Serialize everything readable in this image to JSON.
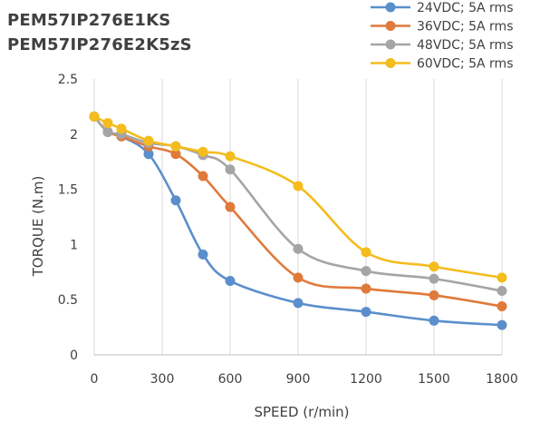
{
  "chart_data": {
    "type": "line",
    "title_lines": [
      "PEM57IP276E1KS",
      "PEM57IP276E2K5zS"
    ],
    "xlabel": "SPEED (r/min)",
    "ylabel": "TORQUE (N.m)",
    "xlim": [
      0,
      1800
    ],
    "ylim": [
      0,
      2.5
    ],
    "x_ticks": [
      "0",
      "300",
      "600",
      "900",
      "1200",
      "1500",
      "1800"
    ],
    "x_tick_values": [
      0,
      300,
      600,
      900,
      1200,
      1500,
      1800
    ],
    "y_ticks": [
      "0",
      "0.5",
      "1",
      "1.5",
      "2",
      "2.5"
    ],
    "y_tick_values": [
      0,
      0.5,
      1,
      1.5,
      2,
      2.5
    ],
    "grid": "vertical",
    "legend_position": "top-right",
    "series": [
      {
        "name": "24VDC; 5A rms",
        "color": "#5B8FCC",
        "points": [
          [
            0,
            2.16
          ],
          [
            60,
            2.02
          ],
          [
            120,
            1.98
          ],
          [
            240,
            1.82
          ],
          [
            360,
            1.4
          ],
          [
            480,
            0.91
          ],
          [
            600,
            0.67
          ],
          [
            900,
            0.47
          ],
          [
            1200,
            0.39
          ],
          [
            1500,
            0.31
          ],
          [
            1800,
            0.27
          ]
        ]
      },
      {
        "name": "36VDC; 5A rms",
        "color": "#E07A3B",
        "points": [
          [
            0,
            2.16
          ],
          [
            60,
            2.02
          ],
          [
            120,
            1.98
          ],
          [
            240,
            1.89
          ],
          [
            360,
            1.82
          ],
          [
            480,
            1.62
          ],
          [
            600,
            1.34
          ],
          [
            900,
            0.7
          ],
          [
            1200,
            0.6
          ],
          [
            1500,
            0.54
          ],
          [
            1800,
            0.44
          ]
        ]
      },
      {
        "name": "48VDC; 5A rms",
        "color": "#A5A5A5",
        "points": [
          [
            0,
            2.16
          ],
          [
            60,
            2.02
          ],
          [
            120,
            2.0
          ],
          [
            240,
            1.92
          ],
          [
            360,
            1.89
          ],
          [
            480,
            1.81
          ],
          [
            600,
            1.68
          ],
          [
            900,
            0.96
          ],
          [
            1200,
            0.76
          ],
          [
            1500,
            0.69
          ],
          [
            1800,
            0.58
          ]
        ]
      },
      {
        "name": "60VDC; 5A rms",
        "color": "#F4BC1C",
        "points": [
          [
            0,
            2.16
          ],
          [
            60,
            2.1
          ],
          [
            120,
            2.05
          ],
          [
            240,
            1.94
          ],
          [
            360,
            1.89
          ],
          [
            480,
            1.84
          ],
          [
            600,
            1.8
          ],
          [
            900,
            1.53
          ],
          [
            1200,
            0.93
          ],
          [
            1500,
            0.8
          ],
          [
            1800,
            0.7
          ]
        ]
      }
    ]
  }
}
